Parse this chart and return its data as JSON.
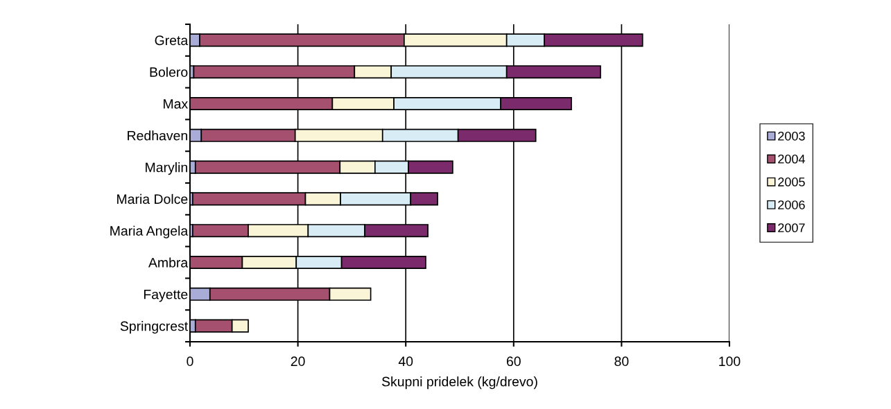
{
  "chart_data": {
    "type": "bar",
    "orientation": "horizontal",
    "stacked": true,
    "xlabel": "Skupni pridelek (kg/drevo)",
    "categories": [
      "Greta",
      "Bolero",
      "Max",
      "Redhaven",
      "Marylin",
      "Maria Dolce",
      "Maria Angela",
      "Ambra",
      "Fayette",
      "Springcrest"
    ],
    "series": [
      {
        "name": "2003",
        "color": "#a9acd6",
        "values": [
          1.8,
          0.7,
          null,
          2.1,
          1.0,
          0.5,
          0.5,
          null,
          3.7,
          1.0
        ]
      },
      {
        "name": "2004",
        "color": "#a5506f",
        "values": [
          37.9,
          29.8,
          26.4,
          17.4,
          26.8,
          20.9,
          10.3,
          9.7,
          22.2,
          6.8
        ]
      },
      {
        "name": "2005",
        "color": "#faf5d7",
        "values": [
          19.0,
          6.8,
          11.4,
          16.2,
          6.5,
          6.5,
          11.1,
          10.0,
          7.6,
          3.0
        ]
      },
      {
        "name": "2006",
        "color": "#d8ecf6",
        "values": [
          7.0,
          21.4,
          19.8,
          14.0,
          6.2,
          13.0,
          10.5,
          8.4,
          null,
          null
        ]
      },
      {
        "name": "2007",
        "color": "#7b2a6b",
        "values": [
          18.2,
          17.4,
          13.1,
          14.4,
          8.2,
          5.0,
          11.7,
          15.6,
          null,
          null
        ]
      }
    ],
    "xlim": [
      0,
      100
    ],
    "xticks": [
      0,
      20,
      40,
      60,
      80,
      100
    ],
    "grid": "x",
    "legend": "right"
  }
}
